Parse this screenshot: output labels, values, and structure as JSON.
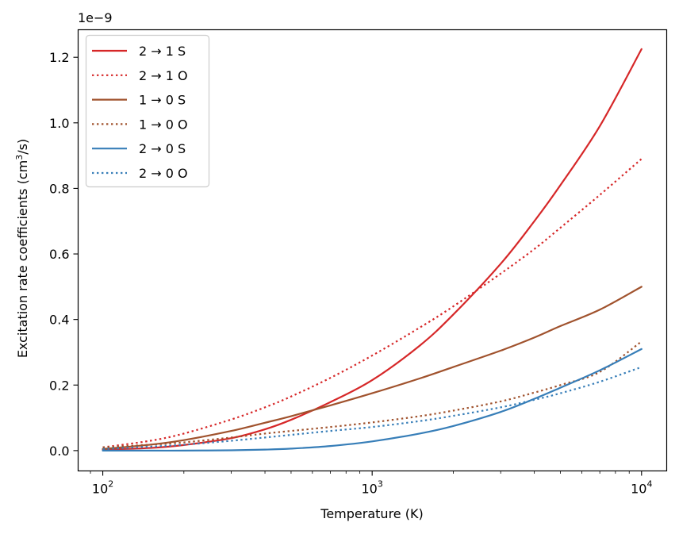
{
  "chart_data": {
    "type": "line",
    "xscale": "log",
    "xlabel": "Temperature (K)",
    "ylabel_main": "Excitation rate coefficients (cm",
    "ylabel_sup": "3",
    "ylabel_tail": "/s)",
    "y_offset_label": "1e−9",
    "xlim": [
      81,
      12400
    ],
    "ylim": [
      -0.062,
      1.284
    ],
    "x_ticks": [
      {
        "value": 100,
        "base": "10",
        "exp": "2"
      },
      {
        "value": 1000,
        "base": "10",
        "exp": "3"
      },
      {
        "value": 10000,
        "base": "10",
        "exp": "4"
      }
    ],
    "y_ticks": [
      {
        "value": 0.0,
        "label": "0.0"
      },
      {
        "value": 0.2,
        "label": "0.2"
      },
      {
        "value": 0.4,
        "label": "0.4"
      },
      {
        "value": 0.6,
        "label": "0.6"
      },
      {
        "value": 0.8,
        "label": "0.8"
      },
      {
        "value": 1.0,
        "label": "1.0"
      },
      {
        "value": 1.2,
        "label": "1.2"
      }
    ],
    "x": [
      100,
      150,
      200,
      300,
      400,
      500,
      700,
      1000,
      1500,
      2000,
      3000,
      4000,
      5000,
      7000,
      10000
    ],
    "series": [
      {
        "name": "2 → 1 S",
        "color": "#d62728",
        "dash": "solid",
        "values": [
          0.003,
          0.008,
          0.017,
          0.038,
          0.065,
          0.094,
          0.148,
          0.215,
          0.32,
          0.415,
          0.57,
          0.7,
          0.81,
          0.99,
          1.225
        ]
      },
      {
        "name": "2 → 1 O",
        "color": "#d62728",
        "dash": "dotted",
        "values": [
          0.01,
          0.03,
          0.052,
          0.095,
          0.132,
          0.165,
          0.222,
          0.29,
          0.375,
          0.44,
          0.54,
          0.615,
          0.68,
          0.78,
          0.89
        ]
      },
      {
        "name": "1 → 0 S",
        "color": "#a0522d",
        "dash": "solid",
        "values": [
          0.005,
          0.018,
          0.032,
          0.06,
          0.085,
          0.105,
          0.138,
          0.175,
          0.22,
          0.255,
          0.305,
          0.345,
          0.38,
          0.43,
          0.5
        ]
      },
      {
        "name": "1 → 0 O",
        "color": "#a0522d",
        "dash": "dotted",
        "values": [
          0.01,
          0.018,
          0.025,
          0.04,
          0.052,
          0.06,
          0.072,
          0.086,
          0.105,
          0.122,
          0.15,
          0.177,
          0.2,
          0.24,
          0.333
        ]
      },
      {
        "name": "2 → 0 S",
        "color": "#377eb8",
        "dash": "solid",
        "values": [
          0.0,
          0.0,
          0.0,
          0.001,
          0.003,
          0.006,
          0.014,
          0.028,
          0.052,
          0.075,
          0.118,
          0.158,
          0.192,
          0.245,
          0.31
        ]
      },
      {
        "name": "2 → 0 O",
        "color": "#377eb8",
        "dash": "dotted",
        "values": [
          0.005,
          0.012,
          0.018,
          0.03,
          0.04,
          0.048,
          0.06,
          0.072,
          0.09,
          0.106,
          0.132,
          0.155,
          0.175,
          0.21,
          0.255
        ]
      }
    ],
    "legend_loc": "upper-left",
    "grid": false
  }
}
